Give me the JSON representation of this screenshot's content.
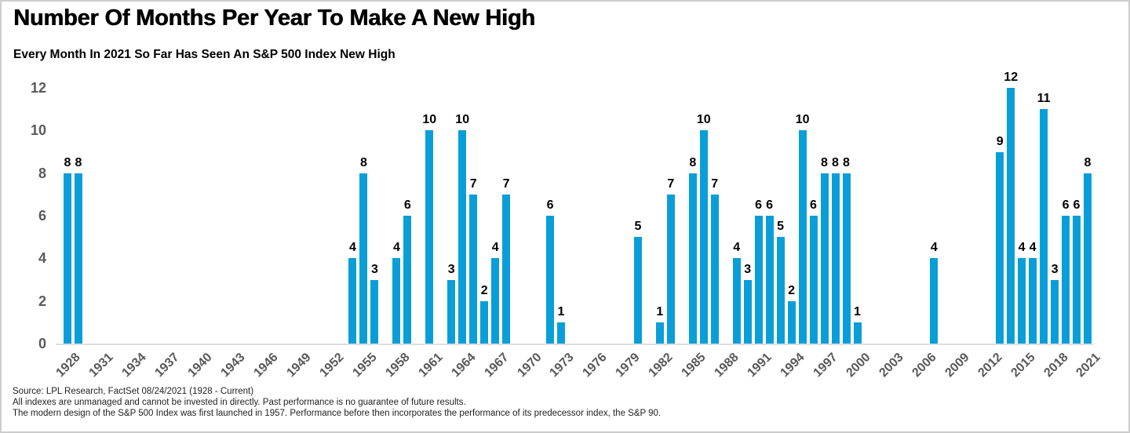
{
  "title": "Number Of Months Per Year To Make A New High",
  "subtitle": "Every Month In 2021 So Far Has Seen An S&P 500 Index New High",
  "chart_data": {
    "type": "bar",
    "title": "Number Of Months Per Year To Make A New High",
    "subtitle": "Every Month In 2021 So Far Has Seen An S&P 500 Index New High",
    "xlabel": "",
    "ylabel": "",
    "x_start": 1928,
    "x_end": 2021,
    "ylim": [
      0,
      12
    ],
    "y_ticks": [
      0,
      2,
      4,
      6,
      8,
      10,
      12
    ],
    "x_ticks": [
      1928,
      1931,
      1934,
      1937,
      1940,
      1943,
      1946,
      1949,
      1952,
      1955,
      1958,
      1961,
      1964,
      1967,
      1970,
      1973,
      1976,
      1979,
      1982,
      1985,
      1988,
      1991,
      1994,
      1997,
      2000,
      2003,
      2006,
      2009,
      2012,
      2015,
      2018,
      2021
    ],
    "grid": false,
    "legend": false,
    "value_labels_shown": true,
    "bar_color": "#0a9ed9",
    "axis_tick_color": "#595959",
    "value_label_color": "#000000",
    "baseline_color": "#dedede",
    "points": [
      {
        "year": 1928,
        "months": 8
      },
      {
        "year": 1929,
        "months": 8
      },
      {
        "year": 1954,
        "months": 4
      },
      {
        "year": 1955,
        "months": 8
      },
      {
        "year": 1956,
        "months": 3
      },
      {
        "year": 1958,
        "months": 4
      },
      {
        "year": 1959,
        "months": 6
      },
      {
        "year": 1961,
        "months": 10
      },
      {
        "year": 1963,
        "months": 3
      },
      {
        "year": 1964,
        "months": 10
      },
      {
        "year": 1965,
        "months": 7
      },
      {
        "year": 1966,
        "months": 2
      },
      {
        "year": 1967,
        "months": 4
      },
      {
        "year": 1968,
        "months": 7
      },
      {
        "year": 1972,
        "months": 6
      },
      {
        "year": 1973,
        "months": 1
      },
      {
        "year": 1980,
        "months": 5
      },
      {
        "year": 1982,
        "months": 1
      },
      {
        "year": 1983,
        "months": 7
      },
      {
        "year": 1985,
        "months": 8
      },
      {
        "year": 1986,
        "months": 10
      },
      {
        "year": 1987,
        "months": 7
      },
      {
        "year": 1989,
        "months": 4
      },
      {
        "year": 1990,
        "months": 3
      },
      {
        "year": 1991,
        "months": 6
      },
      {
        "year": 1992,
        "months": 6
      },
      {
        "year": 1993,
        "months": 5
      },
      {
        "year": 1994,
        "months": 2
      },
      {
        "year": 1995,
        "months": 10
      },
      {
        "year": 1996,
        "months": 6
      },
      {
        "year": 1997,
        "months": 8
      },
      {
        "year": 1998,
        "months": 8
      },
      {
        "year": 1999,
        "months": 8
      },
      {
        "year": 2000,
        "months": 1
      },
      {
        "year": 2007,
        "months": 4
      },
      {
        "year": 2013,
        "months": 9
      },
      {
        "year": 2014,
        "months": 12
      },
      {
        "year": 2015,
        "months": 4
      },
      {
        "year": 2016,
        "months": 4
      },
      {
        "year": 2017,
        "months": 11
      },
      {
        "year": 2018,
        "months": 3
      },
      {
        "year": 2019,
        "months": 6
      },
      {
        "year": 2020,
        "months": 6
      },
      {
        "year": 2021,
        "months": 8
      }
    ]
  },
  "footer": {
    "lines": [
      "Source: LPL Research, FactSet 08/24/2021 (1928 - Current)",
      "All indexes are unmanaged and cannot be invested in directly. Past performance is no guarantee of future results.",
      "The modern design of the S&P 500 Index was first launched in 1957. Performance before then incorporates the performance of its predecessor index, the S&P 90."
    ]
  }
}
